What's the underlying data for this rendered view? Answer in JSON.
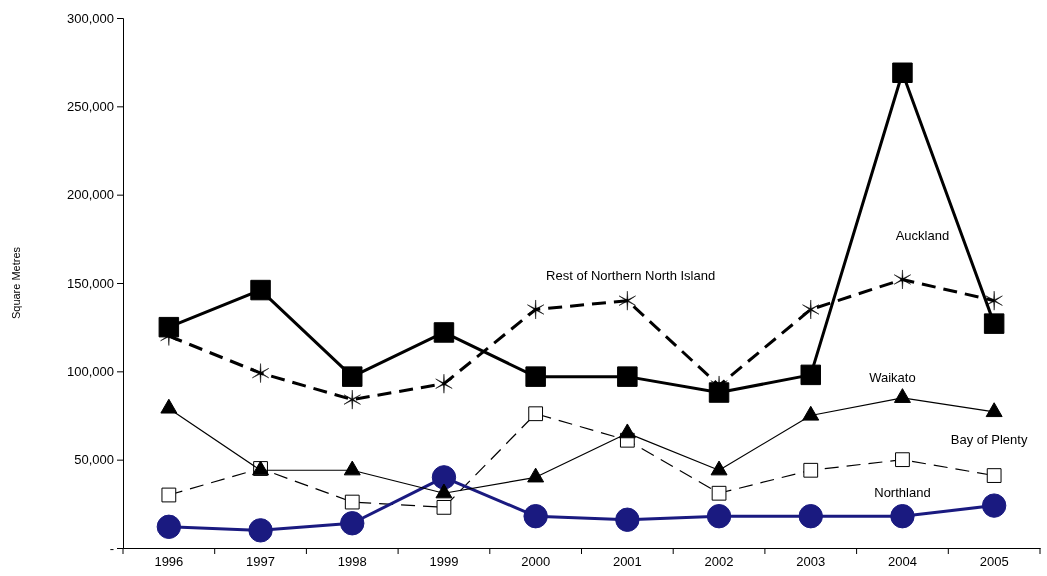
{
  "chart_data": {
    "type": "line",
    "ylabel": "Square Metres",
    "categories": [
      "1996",
      "1997",
      "1998",
      "1999",
      "2000",
      "2001",
      "2002",
      "2003",
      "2004",
      "2005"
    ],
    "ylim": [
      0,
      300000
    ],
    "yticks": [
      {
        "value": 0,
        "label": "-"
      },
      {
        "value": 50000,
        "label": "50,000"
      },
      {
        "value": 100000,
        "label": "100,000"
      },
      {
        "value": 150000,
        "label": "150,000"
      },
      {
        "value": 200000,
        "label": "200,000"
      },
      {
        "value": 250000,
        "label": "250,000"
      },
      {
        "value": 300000,
        "label": "300,000"
      }
    ],
    "grid": false,
    "series": [
      {
        "name": "Auckland",
        "color": "#000000",
        "marker": "square",
        "line_style": "solid",
        "values": [
          125000,
          146000,
          97000,
          122000,
          97000,
          97000,
          88000,
          98000,
          269000,
          127000
        ]
      },
      {
        "name": "Rest of Northern North Island",
        "color": "#000000",
        "marker": "cross",
        "line_style": "dashed",
        "values": [
          120000,
          99000,
          84000,
          93000,
          135000,
          140000,
          92000,
          135000,
          152000,
          140000
        ]
      },
      {
        "name": "Waikato",
        "color": "#000000",
        "marker": "triangle",
        "line_style": "solid",
        "values": [
          79000,
          44000,
          44000,
          31000,
          40000,
          65000,
          44000,
          75000,
          85000,
          77000
        ]
      },
      {
        "name": "Bay of Plenty",
        "color": "#000000",
        "marker": "square",
        "line_style": "dashed",
        "values": [
          30000,
          45000,
          26000,
          23000,
          76000,
          61000,
          31000,
          44000,
          50000,
          41000
        ]
      },
      {
        "name": "Northland",
        "color": "#1a1a80",
        "marker": "circle",
        "line_style": "solid",
        "values": [
          12000,
          10000,
          14000,
          40000,
          18000,
          16000,
          18000,
          18000,
          18000,
          24000
        ]
      }
    ]
  }
}
